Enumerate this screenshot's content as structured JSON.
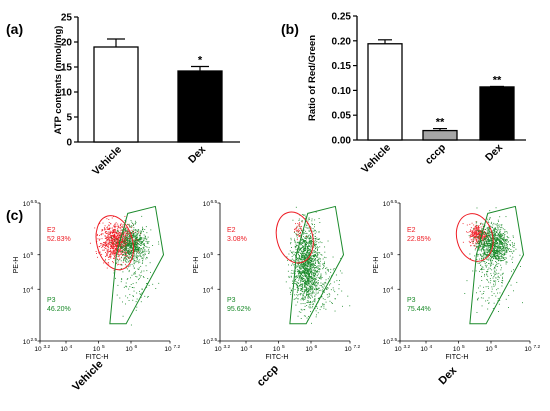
{
  "panel_labels": [
    "(a)",
    "(b)",
    "(c)"
  ],
  "colors": {
    "E2": "#ee1c24",
    "P3": "#1a8a2a",
    "dex_bar": "#000000",
    "cccp_bar": "#a6a6a6",
    "vehicle_bar": "#ffffff"
  },
  "chart_data": [
    {
      "id": "a",
      "type": "bar",
      "categories": [
        "Vehicle",
        "Dex"
      ],
      "values": [
        19.0,
        14.2
      ],
      "errors": [
        1.6,
        0.9
      ],
      "significance": [
        "",
        "*"
      ],
      "ylabel": "ATP contents (nmol/mg)",
      "ylim": [
        0,
        25
      ],
      "yticks": [
        "0",
        "5",
        "10",
        "15",
        "20",
        "25"
      ],
      "grid": false
    },
    {
      "id": "b",
      "type": "bar",
      "categories": [
        "Vehicle",
        "cccp",
        "Dex"
      ],
      "values": [
        0.194,
        0.019,
        0.107
      ],
      "errors": [
        0.008,
        0.004,
        0.001
      ],
      "significance": [
        "",
        "**",
        "**"
      ],
      "ylabel": "Ratio of Red/Green",
      "ylim": [
        0,
        0.25
      ],
      "yticks": [
        "0.00",
        "0.05",
        "0.10",
        "0.15",
        "0.20",
        "0.25"
      ],
      "grid": false
    },
    {
      "id": "c",
      "type": "scatter",
      "xlabel": "FITC-H",
      "ylabel": "PE-H",
      "x_log_range": [
        3.2,
        7.2
      ],
      "y_log_range": [
        2.5,
        6.5
      ],
      "x_ticks": [
        {
          "base": "10",
          "exp": "3.2"
        },
        {
          "base": "10",
          "exp": "4"
        },
        {
          "base": "10",
          "exp": "5"
        },
        {
          "base": "10",
          "exp": "6"
        },
        {
          "base": "10",
          "exp": "7.2"
        }
      ],
      "y_ticks": [
        {
          "base": "10",
          "exp": "2.5"
        },
        {
          "base": "10",
          "exp": "4"
        },
        {
          "base": "10",
          "exp": "5"
        },
        {
          "base": "10",
          "exp": "6.5"
        }
      ],
      "plots": [
        {
          "name": "Vehicle",
          "E2_label": "E2",
          "E2_pct": "52.83%",
          "P3_label": "P3",
          "P3_pct": "46.20%"
        },
        {
          "name": "cccp",
          "E2_label": "E2",
          "E2_pct": "3.08%",
          "P3_label": "P3",
          "P3_pct": "95.62%"
        },
        {
          "name": "Dex",
          "E2_label": "E2",
          "E2_pct": "22.85%",
          "P3_label": "P3",
          "P3_pct": "75.44%"
        }
      ]
    }
  ]
}
